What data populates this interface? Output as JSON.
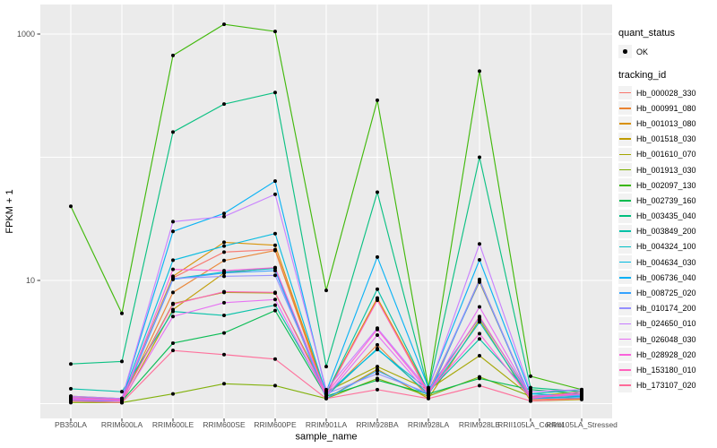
{
  "panel": {
    "bg_color": "#EBEBEB",
    "grid_color": "#FFFFFF",
    "legend_key_bg": "#F2F2F2",
    "tick_label_color": "#4D4D4D",
    "tick_mark_color": "#333333",
    "point_color": "#000000"
  },
  "legend": {
    "quant_status": {
      "title": "quant_status",
      "items": [
        {
          "label": "OK",
          "marker": "black-point"
        }
      ]
    },
    "tracking_id": {
      "title": "tracking_id"
    }
  },
  "chart_data": {
    "type": "line",
    "title": "",
    "xlabel": "sample_name",
    "ylabel": "FPKM + 1",
    "y_scale": "log10",
    "ylim": [
      1,
      1300
    ],
    "grid": "on",
    "legend_position": "right",
    "y_ticks": [
      {
        "label": "1000",
        "value": 1000
      },
      {
        "label": "10",
        "value": 10
      }
    ],
    "y_gridlines": [
      1000,
      100,
      10,
      1
    ],
    "categories": [
      "PB350LA",
      "RRIM600LA",
      "RRIM600LE",
      "RRIM600SE",
      "RRIM600PE",
      "RRIM901LA",
      "RRIM928BA",
      "RRIM928LA",
      "RRIM928LE",
      "RRII105LA_Control",
      "RRII105LA_Stressed"
    ],
    "series": [
      {
        "name": "Hb_000028_330",
        "color": "#F8766D",
        "values": [
          1.1,
          1.08,
          10.5,
          17.0,
          17.8,
          1.2,
          7.0,
          1.2,
          10.0,
          1.1,
          1.15
        ]
      },
      {
        "name": "Hb_000991_080",
        "color": "#EA8331",
        "values": [
          1.05,
          1.05,
          8.0,
          14.5,
          17.5,
          1.15,
          3.0,
          1.15,
          10.2,
          1.08,
          1.1
        ]
      },
      {
        "name": "Hb_001013_080",
        "color": "#D89000",
        "values": [
          1.1,
          1.08,
          10.8,
          20.4,
          19.3,
          1.2,
          7.2,
          1.25,
          9.7,
          1.12,
          1.2
        ]
      },
      {
        "name": "Hb_001518_030",
        "color": "#C09B00",
        "values": [
          1.05,
          1.02,
          5.8,
          11.5,
          12.7,
          1.1,
          1.9,
          1.1,
          4.8,
          1.05,
          1.08
        ]
      },
      {
        "name": "Hb_001610_070",
        "color": "#A3A500",
        "values": [
          1.15,
          1.1,
          6.5,
          8.0,
          7.9,
          1.25,
          2.0,
          1.3,
          2.45,
          1.15,
          1.25
        ]
      },
      {
        "name": "Hb_001913_030",
        "color": "#7CAE00",
        "values": [
          1.02,
          1.02,
          1.2,
          1.45,
          1.4,
          1.1,
          1.6,
          1.15,
          1.65,
          1.15,
          1.1
        ]
      },
      {
        "name": "Hb_002097_130",
        "color": "#39B600",
        "values": [
          40,
          5.4,
          670,
          1200,
          1050,
          8.3,
          290,
          1.35,
          500,
          1.67,
          1.3
        ]
      },
      {
        "name": "Hb_002739_160",
        "color": "#00BB4E",
        "values": [
          1.1,
          1.05,
          3.1,
          3.75,
          5.7,
          1.15,
          1.55,
          1.2,
          1.6,
          1.3,
          1.2
        ]
      },
      {
        "name": "Hb_003435_040",
        "color": "#00BF7D",
        "values": [
          2.1,
          2.2,
          160,
          270,
          335,
          2.0,
          52,
          1.3,
          100,
          1.35,
          1.25
        ]
      },
      {
        "name": "Hb_003849_200",
        "color": "#00C1A7",
        "values": [
          1.32,
          1.25,
          5.6,
          5.2,
          6.3,
          1.2,
          8.5,
          1.25,
          3.35,
          1.2,
          1.3
        ]
      },
      {
        "name": "Hb_004324_100",
        "color": "#00BFC4",
        "values": [
          1.08,
          1.06,
          10.3,
          11.7,
          12.5,
          1.15,
          2.8,
          1.2,
          4.6,
          1.1,
          1.15
        ]
      },
      {
        "name": "Hb_004634_030",
        "color": "#00BAE0",
        "values": [
          1.12,
          1.1,
          14.6,
          19.0,
          24.0,
          1.2,
          2.75,
          1.3,
          5.0,
          1.15,
          1.2
        ]
      },
      {
        "name": "Hb_006736_040",
        "color": "#00B0F6",
        "values": [
          1.1,
          1.1,
          25,
          35,
          64,
          1.25,
          15.5,
          1.35,
          14.7,
          1.2,
          1.15
        ]
      },
      {
        "name": "Hb_008725_020",
        "color": "#35A2FF",
        "values": [
          1.06,
          1.05,
          10.2,
          11.5,
          12.0,
          1.1,
          1.85,
          1.18,
          9.9,
          1.1,
          1.12
        ]
      },
      {
        "name": "Hb_010174_200",
        "color": "#9590FF",
        "values": [
          1.1,
          1.08,
          10.4,
          10.8,
          11.0,
          1.2,
          1.75,
          1.22,
          10.1,
          1.12,
          1.18
        ]
      },
      {
        "name": "Hb_024650_010",
        "color": "#C77CFF",
        "values": [
          1.15,
          1.1,
          30,
          33,
          50,
          1.3,
          4.1,
          1.3,
          19.8,
          1.25,
          1.3
        ]
      },
      {
        "name": "Hb_026048_030",
        "color": "#E76BF3",
        "values": [
          1.1,
          1.05,
          5.1,
          6.6,
          7.0,
          1.15,
          3.6,
          1.2,
          6.1,
          1.15,
          1.2
        ]
      },
      {
        "name": "Hb_028928_020",
        "color": "#FA62DB",
        "values": [
          1.08,
          1.06,
          12.3,
          12.0,
          12.7,
          1.2,
          4.0,
          1.25,
          3.7,
          1.1,
          1.25
        ]
      },
      {
        "name": "Hb_153180_010",
        "color": "#FF62BC",
        "values": [
          1.12,
          1.08,
          6.4,
          8.1,
          8.0,
          1.18,
          6.9,
          1.22,
          5.1,
          1.12,
          1.2
        ]
      },
      {
        "name": "Hb_173107_020",
        "color": "#FF6A98",
        "values": [
          1.05,
          1.02,
          2.7,
          2.5,
          2.3,
          1.1,
          1.3,
          1.1,
          1.4,
          1.05,
          1.1
        ]
      }
    ]
  }
}
